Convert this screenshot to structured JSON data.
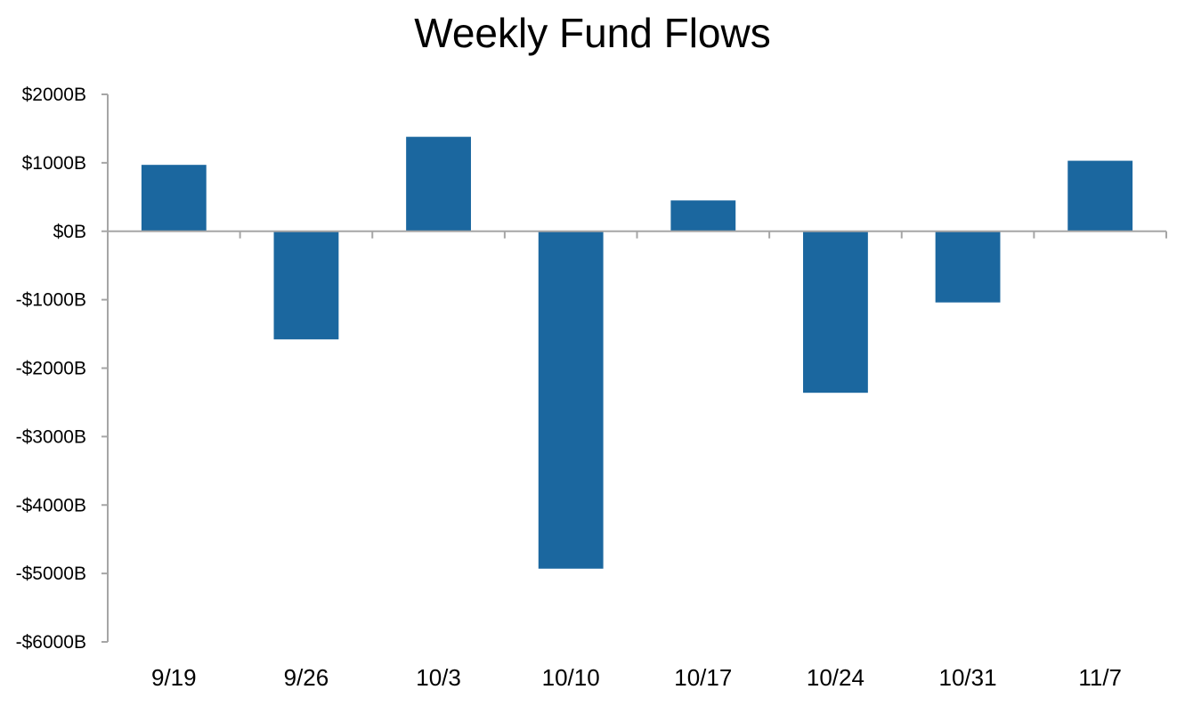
{
  "chart_data": {
    "type": "bar",
    "title": "Weekly Fund Flows",
    "xlabel": "",
    "ylabel": "",
    "categories": [
      "9/19",
      "9/26",
      "10/3",
      "10/10",
      "10/17",
      "10/24",
      "10/31",
      "11/7"
    ],
    "values": [
      970,
      -1580,
      1380,
      -4930,
      450,
      -2360,
      -1040,
      1030
    ],
    "ylim": [
      -6000,
      2000
    ],
    "yticks": [
      2000,
      1000,
      0,
      -1000,
      -2000,
      -3000,
      -4000,
      -5000,
      -6000
    ],
    "ytick_labels": [
      "$2000B",
      "$1000B",
      "$0B",
      "-$1000B",
      "-$2000B",
      "-$3000B",
      "-$4000B",
      "-$5000B",
      "-$6000B"
    ],
    "grid": false,
    "legend": "none",
    "bar_color": "#1b679f",
    "axis_color": "#a6a6a6"
  }
}
